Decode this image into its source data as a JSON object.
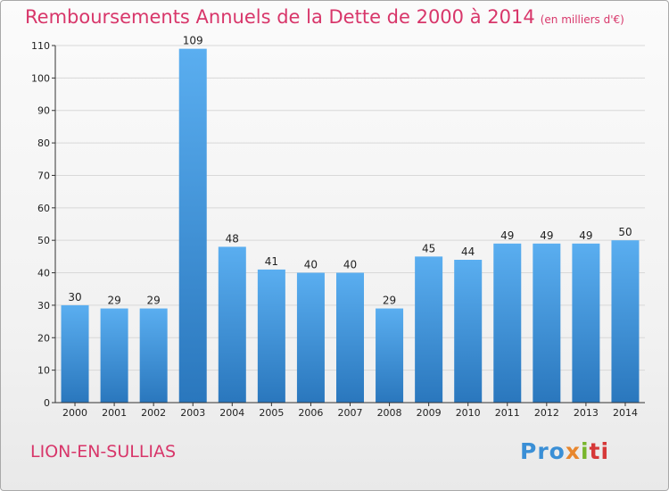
{
  "title": "Remboursements Annuels de la Dette de 2000 à 2014",
  "subtitle": "(en milliers d'€)",
  "commune": "LION-EN-SULLIAS",
  "logo": {
    "parts": [
      "Pro",
      "x",
      "i",
      "ti"
    ]
  },
  "colors": {
    "title": "#d8366a",
    "bar_top": "#5aaef0",
    "bar_bottom": "#2a77bd",
    "axis": "#333333",
    "grid": "#d8d8d8"
  },
  "chart_data": {
    "type": "bar",
    "title": "Remboursements Annuels de la Dette de 2000 à 2014",
    "subtitle": "(en milliers d'€)",
    "categories": [
      "2000",
      "2001",
      "2002",
      "2003",
      "2004",
      "2005",
      "2006",
      "2007",
      "2008",
      "2009",
      "2010",
      "2011",
      "2012",
      "2013",
      "2014"
    ],
    "values": [
      30,
      29,
      29,
      109,
      48,
      41,
      40,
      40,
      29,
      45,
      44,
      49,
      49,
      49,
      50
    ],
    "ylim": [
      0,
      110
    ],
    "yticks": [
      0,
      10,
      20,
      30,
      40,
      50,
      60,
      70,
      80,
      90,
      100,
      110
    ],
    "grid": true,
    "legend": "none",
    "xlabel": "",
    "ylabel": ""
  }
}
